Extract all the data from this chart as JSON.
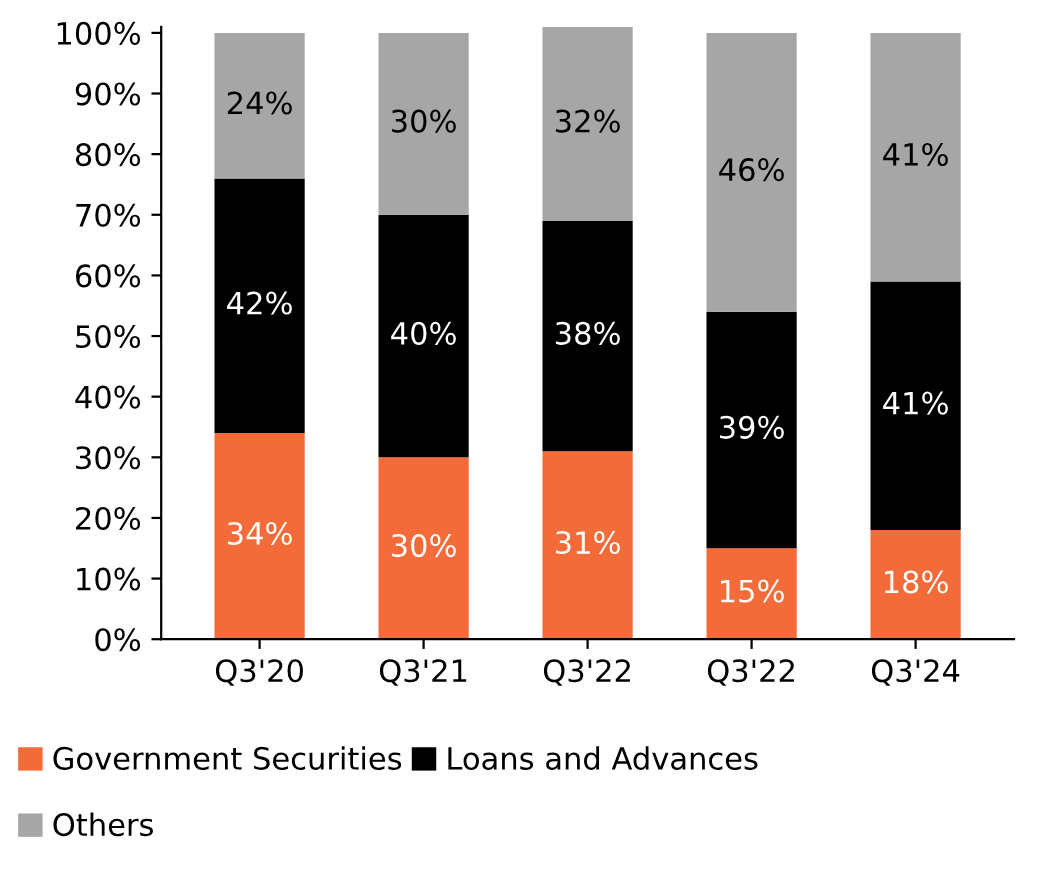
{
  "chart_data": {
    "type": "bar",
    "stacked": true,
    "categories": [
      "Q3'20",
      "Q3'21",
      "Q3'22",
      "Q3'22",
      "Q3'24"
    ],
    "series": [
      {
        "name": "Government Securities",
        "color": "#f26b38",
        "values": [
          34,
          30,
          31,
          15,
          18
        ],
        "value_labels": [
          "34%",
          "30%",
          "31%",
          "15%",
          "18%"
        ]
      },
      {
        "name": "Loans and Advances",
        "color": "#000000",
        "values": [
          42,
          40,
          38,
          39,
          41
        ],
        "value_labels": [
          "42%",
          "40%",
          "38%",
          "39%",
          "41%"
        ]
      },
      {
        "name": "Others",
        "color": "#a6a6a6",
        "values": [
          24,
          30,
          32,
          46,
          41
        ],
        "value_labels": [
          "24%",
          "30%",
          "32%",
          "46%",
          "41%"
        ]
      }
    ],
    "ylim": [
      0,
      101
    ],
    "yticks": [
      {
        "value": 0,
        "label": "0%"
      },
      {
        "value": 10,
        "label": "10%"
      },
      {
        "value": 20,
        "label": "20%"
      },
      {
        "value": 30,
        "label": "30%"
      },
      {
        "value": 40,
        "label": "40%"
      },
      {
        "value": 50,
        "label": "50%"
      },
      {
        "value": 60,
        "label": "60%"
      },
      {
        "value": 70,
        "label": "70%"
      },
      {
        "value": 80,
        "label": "80%"
      },
      {
        "value": 90,
        "label": "90%"
      },
      {
        "value": 100,
        "label": "100%"
      }
    ],
    "grid": false,
    "legend": "bottom"
  }
}
